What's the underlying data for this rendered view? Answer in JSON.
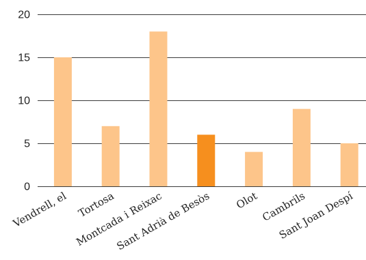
{
  "chart_data": {
    "type": "bar",
    "categories": [
      "Vendrell, el",
      "Tortosa",
      "Montcada i Reixac",
      "Sant Adrià de Besòs",
      "Olot",
      "Cambrils",
      "Sant Joan Despí"
    ],
    "values": [
      15,
      7,
      18,
      6,
      4,
      9,
      5
    ],
    "highlight_index": 3,
    "colors": {
      "bar": "#fdc58a",
      "highlight": "#f68f1e",
      "grid": "#3a3a3a"
    },
    "ylim": [
      0,
      20
    ],
    "yticks": [
      0,
      5,
      10,
      15,
      20
    ],
    "grid": true,
    "xlabel": "",
    "ylabel": "",
    "title": ""
  }
}
